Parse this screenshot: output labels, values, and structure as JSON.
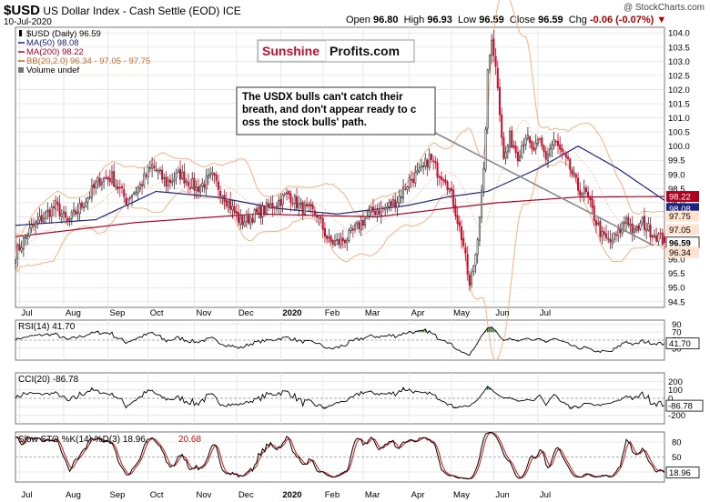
{
  "header": {
    "symbol": "$USD",
    "name": "US Dollar Index - Cash Settle (EOD) ICE",
    "date": "10-Jul-2020",
    "watermark": "@ StockCharts.com",
    "open_label": "Open",
    "open": "96.80",
    "high_label": "High",
    "high": "96.93",
    "low_label": "Low",
    "low": "96.59",
    "close_label": "Close",
    "close": "96.59",
    "chg_label": "Chg",
    "chg": "-0.06 (-0.07%)"
  },
  "legend": {
    "series": "$USD (Daily) 96.59",
    "ma50": "MA(50) 98.08",
    "ma200": "MA(200) 98.22",
    "bb": "BB(20,2.0) 96.34 - 97.05 - 97.75",
    "volume": "Volume undef"
  },
  "logo": {
    "part1": "Sunshine",
    "part2": "Profits.com"
  },
  "annotation": "The USDX bulls can't catch their breath, and don't appear ready to cross the stock bulls' path.",
  "colors": {
    "up": "#2b2b2b",
    "down": "#c0102e",
    "ma50": "#1a237e",
    "ma200": "#b00020",
    "bb": "#f2b487",
    "grid": "#e2e2e2",
    "pos_fill": "#2e6b2e",
    "neg_fill": "#8a3a3a",
    "accent": "#c0102e"
  },
  "chart_data": [
    {
      "type": "line",
      "title": "$USD (Daily)",
      "x_labels": [
        "Jul",
        "Aug",
        "Sep",
        "Oct",
        "Nov",
        "Dec",
        "2020",
        "Feb",
        "Mar",
        "Apr",
        "May",
        "Jun",
        "Jul"
      ],
      "ylim": [
        94.3,
        104.2
      ],
      "y_ticks": [
        94.5,
        95.0,
        95.5,
        96.0,
        96.5,
        97.0,
        97.5,
        98.0,
        98.5,
        99.0,
        99.5,
        100.0,
        100.5,
        101.0,
        101.5,
        102.0,
        102.5,
        103.0,
        103.5,
        104.0
      ],
      "price_keypoints": [
        [
          0,
          96.2
        ],
        [
          8,
          97.1
        ],
        [
          20,
          97.9
        ],
        [
          26,
          97.3
        ],
        [
          34,
          98.0
        ],
        [
          42,
          98.8
        ],
        [
          48,
          98.9
        ],
        [
          55,
          98.1
        ],
        [
          62,
          98.6
        ],
        [
          68,
          99.3
        ],
        [
          75,
          98.7
        ],
        [
          82,
          99.0
        ],
        [
          90,
          98.5
        ],
        [
          98,
          98.9
        ],
        [
          106,
          98.0
        ],
        [
          112,
          97.3
        ],
        [
          120,
          97.6
        ],
        [
          128,
          97.9
        ],
        [
          136,
          98.3
        ],
        [
          142,
          97.8
        ],
        [
          150,
          97.6
        ],
        [
          156,
          96.6
        ],
        [
          161,
          96.6
        ],
        [
          166,
          96.8
        ],
        [
          172,
          97.3
        ],
        [
          178,
          97.7
        ],
        [
          184,
          97.8
        ],
        [
          190,
          98.1
        ],
        [
          196,
          98.8
        ],
        [
          202,
          99.1
        ],
        [
          206,
          99.6
        ],
        [
          210,
          99.1
        ],
        [
          214,
          98.9
        ],
        [
          218,
          98.0
        ],
        [
          223,
          96.5
        ],
        [
          226,
          95.0
        ],
        [
          229,
          96.2
        ],
        [
          233,
          99.0
        ],
        [
          235,
          102.5
        ],
        [
          237,
          103.9
        ],
        [
          240,
          102.2
        ],
        [
          243,
          99.5
        ],
        [
          246,
          100.3
        ],
        [
          250,
          99.7
        ],
        [
          254,
          100.4
        ],
        [
          257,
          99.8
        ],
        [
          261,
          100.1
        ],
        [
          264,
          99.6
        ],
        [
          268,
          100.2
        ],
        [
          272,
          99.7
        ],
        [
          276,
          99.2
        ],
        [
          280,
          98.5
        ],
        [
          284,
          98.3
        ],
        [
          288,
          97.5
        ],
        [
          292,
          96.8
        ],
        [
          296,
          96.6
        ],
        [
          300,
          96.9
        ],
        [
          304,
          97.5
        ],
        [
          308,
          96.9
        ],
        [
          312,
          97.3
        ],
        [
          316,
          97.0
        ],
        [
          320,
          96.8
        ],
        [
          323,
          96.6
        ]
      ],
      "ma50_keypoints": [
        [
          0,
          97.2
        ],
        [
          40,
          97.4
        ],
        [
          70,
          98.4
        ],
        [
          100,
          98.2
        ],
        [
          130,
          97.8
        ],
        [
          160,
          97.6
        ],
        [
          195,
          97.9
        ],
        [
          215,
          98.2
        ],
        [
          235,
          98.4
        ],
        [
          260,
          99.2
        ],
        [
          280,
          100.0
        ],
        [
          300,
          99.2
        ],
        [
          323,
          98.08
        ]
      ],
      "ma200_keypoints": [
        [
          0,
          96.8
        ],
        [
          60,
          97.3
        ],
        [
          120,
          97.6
        ],
        [
          180,
          97.5
        ],
        [
          215,
          97.8
        ],
        [
          240,
          98.0
        ],
        [
          280,
          98.2
        ],
        [
          323,
          98.22
        ]
      ],
      "price_labels": [
        "96.59",
        "98.22",
        "98.08",
        "97.75",
        "97.05",
        "96.34"
      ],
      "current_close": 96.59
    },
    {
      "type": "line",
      "title": "RSI(14)",
      "last_value": 41.7,
      "last_label": "41.70",
      "ylim": [
        0,
        100
      ],
      "y_ticks": [
        30,
        50,
        70,
        90
      ],
      "y_tick_labels": [
        "30",
        "50",
        "70",
        "90"
      ]
    },
    {
      "type": "line",
      "title": "CCI(20)",
      "last_value": -86.78,
      "last_label": "-86.78",
      "ylim": [
        -300,
        300
      ],
      "y_ticks": [
        -200,
        -100,
        0,
        100,
        200
      ],
      "y_tick_labels": [
        "-200",
        "-100",
        "0",
        "100",
        "200"
      ]
    },
    {
      "type": "line",
      "title": "Slow STO %K(14) %D(3)",
      "k_last": 18.96,
      "k_last_label": "18.96",
      "d_last": 20.68,
      "d_last_label": "20.68",
      "ylim": [
        0,
        100
      ],
      "y_ticks": [
        20,
        50,
        80
      ],
      "y_tick_labels": [
        "20",
        "50",
        "80"
      ]
    }
  ],
  "panel_titles": {
    "rsi": "RSI(14) 41.70",
    "cci": "CCI(20) -86.78",
    "sto_k": "Slow STO %K(14) %D(3) 18.96,",
    "sto_d": "20.68"
  }
}
